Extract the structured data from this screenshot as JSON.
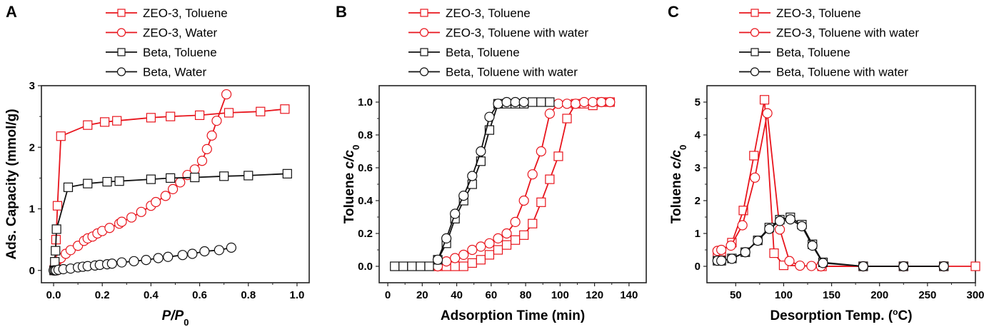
{
  "figure": {
    "colors": {
      "zeo3": "#e8141c",
      "beta": "#111111",
      "axis": "#222222"
    }
  },
  "chart_data": [
    {
      "panel": "A",
      "type": "line",
      "title": "",
      "xlabel": "P/P0",
      "xlabel_parts": {
        "main": "P/P",
        "sub": "0"
      },
      "ylabel": "Ads. Capacity (mmol/g)",
      "xlim": [
        -0.05,
        1.05
      ],
      "ylim": [
        -0.2,
        3.0
      ],
      "xticks": [
        0.0,
        0.2,
        0.4,
        0.6,
        0.8,
        1.0
      ],
      "xtick_labels": [
        "0.0",
        "0.2",
        "0.4",
        "0.6",
        "0.8",
        "1.0"
      ],
      "yticks": [
        0,
        1,
        2,
        3
      ],
      "ytick_labels": [
        "0",
        "1",
        "2",
        "3"
      ],
      "grid": false,
      "legend_position": "top",
      "series": [
        {
          "name": "ZEO-3, Toluene",
          "color": "zeo3",
          "marker": "square",
          "x": [
            0.003,
            0.006,
            0.01,
            0.016,
            0.03,
            0.14,
            0.21,
            0.26,
            0.4,
            0.48,
            0.6,
            0.72,
            0.85,
            0.95
          ],
          "y": [
            0.0,
            0.12,
            0.5,
            1.05,
            2.18,
            2.36,
            2.41,
            2.43,
            2.48,
            2.5,
            2.52,
            2.56,
            2.58,
            2.62
          ]
        },
        {
          "name": "ZEO-3, Water",
          "color": "zeo3",
          "marker": "circle",
          "x": [
            0.003,
            0.01,
            0.02,
            0.03,
            0.05,
            0.07,
            0.1,
            0.125,
            0.14,
            0.16,
            0.18,
            0.2,
            0.23,
            0.27,
            0.28,
            0.32,
            0.36,
            0.4,
            0.42,
            0.46,
            0.49,
            0.52,
            0.55,
            0.58,
            0.61,
            0.63,
            0.65,
            0.67,
            0.71
          ],
          "y": [
            0.05,
            0.13,
            0.18,
            0.2,
            0.27,
            0.33,
            0.4,
            0.48,
            0.52,
            0.55,
            0.6,
            0.64,
            0.69,
            0.76,
            0.79,
            0.86,
            0.95,
            1.05,
            1.11,
            1.21,
            1.32,
            1.43,
            1.55,
            1.64,
            1.78,
            1.97,
            2.19,
            2.43,
            2.86
          ]
        },
        {
          "name": "Beta, Toluene",
          "color": "beta",
          "marker": "square",
          "x": [
            0.002,
            0.005,
            0.008,
            0.012,
            0.06,
            0.14,
            0.22,
            0.27,
            0.4,
            0.48,
            0.58,
            0.7,
            0.8,
            0.96
          ],
          "y": [
            0.0,
            0.14,
            0.32,
            0.67,
            1.35,
            1.41,
            1.44,
            1.45,
            1.48,
            1.5,
            1.51,
            1.53,
            1.54,
            1.57
          ]
        },
        {
          "name": "Beta, Water",
          "color": "beta",
          "marker": "circle",
          "x": [
            0.0,
            0.005,
            0.01,
            0.02,
            0.04,
            0.07,
            0.1,
            0.12,
            0.14,
            0.17,
            0.19,
            0.22,
            0.24,
            0.28,
            0.33,
            0.38,
            0.43,
            0.47,
            0.53,
            0.57,
            0.62,
            0.68,
            0.73
          ],
          "y": [
            0.0,
            0.0,
            0.0,
            0.01,
            0.02,
            0.03,
            0.05,
            0.06,
            0.07,
            0.08,
            0.09,
            0.1,
            0.11,
            0.13,
            0.15,
            0.17,
            0.2,
            0.22,
            0.25,
            0.27,
            0.31,
            0.33,
            0.37
          ]
        }
      ]
    },
    {
      "panel": "B",
      "type": "line",
      "title": "",
      "xlabel": "Adsorption Time (min)",
      "ylabel": "Toluene c/c0",
      "ylabel_parts": {
        "main": "Toluene ",
        "ital": "c/c",
        "sub": "0"
      },
      "xlim": [
        -5,
        150
      ],
      "ylim": [
        -0.1,
        1.1
      ],
      "xticks": [
        0,
        20,
        40,
        60,
        80,
        100,
        120,
        140
      ],
      "xtick_labels": [
        "0",
        "20",
        "40",
        "60",
        "80",
        "100",
        "120",
        "140"
      ],
      "yticks": [
        0.0,
        0.2,
        0.4,
        0.6,
        0.8,
        1.0
      ],
      "ytick_labels": [
        "0.0",
        "0.2",
        "0.4",
        "0.6",
        "0.8",
        "1.0"
      ],
      "grid": false,
      "legend_position": "top",
      "series": [
        {
          "name": "ZEO-3, Toluene",
          "color": "zeo3",
          "marker": "square",
          "x": [
            29,
            34,
            39,
            44,
            49,
            54,
            59,
            64,
            69,
            74,
            79,
            84,
            89,
            94,
            99,
            104,
            109,
            114,
            119,
            124,
            129
          ],
          "y": [
            0.0,
            0.0,
            0.0,
            0.0,
            0.02,
            0.04,
            0.07,
            0.1,
            0.13,
            0.16,
            0.19,
            0.26,
            0.39,
            0.53,
            0.67,
            0.9,
            0.99,
            0.99,
            0.98,
            1.0,
            1.0
          ]
        },
        {
          "name": "ZEO-3, Toluene with water",
          "color": "zeo3",
          "marker": "circle",
          "x": [
            29,
            34,
            39,
            44,
            49,
            54,
            59,
            64,
            69,
            74,
            79,
            84,
            89,
            94,
            99,
            104,
            109,
            114,
            119,
            124,
            129
          ],
          "y": [
            0.0,
            0.03,
            0.05,
            0.07,
            0.1,
            0.12,
            0.14,
            0.17,
            0.2,
            0.27,
            0.4,
            0.56,
            0.7,
            0.93,
            0.99,
            0.99,
            0.99,
            1.0,
            1.0,
            1.0,
            1.0
          ]
        },
        {
          "name": "Beta, Toluene",
          "color": "beta",
          "marker": "square",
          "x": [
            4,
            9,
            14,
            19,
            24,
            29,
            34,
            39,
            44,
            49,
            54,
            59,
            64,
            69,
            74,
            79,
            84,
            89,
            94
          ],
          "y": [
            0.0,
            0.0,
            0.0,
            0.0,
            0.0,
            0.04,
            0.14,
            0.29,
            0.4,
            0.5,
            0.64,
            0.83,
            0.99,
            0.99,
            0.99,
            0.99,
            1.0,
            1.0,
            1.0
          ]
        },
        {
          "name": "Beta, Toluene with water",
          "color": "beta",
          "marker": "circle",
          "x": [
            29,
            34,
            39,
            44,
            49,
            54,
            59,
            64,
            69,
            74,
            79
          ],
          "y": [
            0.04,
            0.17,
            0.32,
            0.43,
            0.55,
            0.7,
            0.91,
            0.99,
            1.0,
            1.0,
            1.0
          ]
        }
      ]
    },
    {
      "panel": "C",
      "type": "line",
      "title": "",
      "xlabel": "Desorption Temp. (°C)",
      "xlabel_parts": {
        "main": "Desorption Temp. (",
        "sup": "o",
        "rest": "C)"
      },
      "ylabel": "Toluene c/c0",
      "ylabel_parts": {
        "main": "Toluene ",
        "ital": "c/c",
        "sub": "0"
      },
      "xlim": [
        20,
        300
      ],
      "ylim": [
        -0.5,
        5.5
      ],
      "xticks": [
        50,
        100,
        150,
        200,
        250,
        300
      ],
      "xtick_labels": [
        "50",
        "100",
        "150",
        "200",
        "250",
        "300"
      ],
      "yticks": [
        0,
        1,
        2,
        3,
        4,
        5
      ],
      "ytick_labels": [
        "0",
        "1",
        "2",
        "3",
        "4",
        "5"
      ],
      "grid": false,
      "legend_position": "top",
      "series": [
        {
          "name": "ZEO-3, Toluene",
          "color": "zeo3",
          "marker": "square",
          "x": [
            31,
            35,
            46,
            58,
            69,
            80,
            90,
            100,
            140,
            183,
            225,
            267,
            300
          ],
          "y": [
            0.4,
            0.45,
            0.72,
            1.7,
            3.37,
            5.07,
            0.4,
            0.03,
            0.0,
            0.0,
            0.0,
            0.0,
            0.0
          ]
        },
        {
          "name": "ZEO-3, Toluene with water",
          "color": "zeo3",
          "marker": "circle",
          "x": [
            31,
            35,
            45,
            57,
            70,
            83,
            96,
            106,
            117,
            129,
            139,
            183,
            225,
            267
          ],
          "y": [
            0.47,
            0.5,
            0.63,
            1.25,
            2.7,
            4.66,
            1.12,
            0.16,
            0.02,
            0.01,
            0.0,
            0.0,
            0.0,
            0.0
          ]
        },
        {
          "name": "Beta, Toluene",
          "color": "beta",
          "marker": "square",
          "x": [
            31,
            35,
            46,
            60,
            73,
            85,
            96,
            107,
            119,
            130,
            141,
            183,
            225,
            267
          ],
          "y": [
            0.17,
            0.17,
            0.24,
            0.43,
            0.79,
            1.18,
            1.42,
            1.49,
            1.27,
            0.67,
            0.12,
            0.0,
            0.0,
            0.0
          ]
        },
        {
          "name": "Beta, Toluene with water",
          "color": "beta",
          "marker": "circle",
          "x": [
            31,
            35,
            46,
            60,
            73,
            85,
            96,
            107,
            119,
            130,
            141,
            183,
            225,
            267
          ],
          "y": [
            0.17,
            0.17,
            0.23,
            0.43,
            0.78,
            1.14,
            1.38,
            1.43,
            1.22,
            0.63,
            0.1,
            0.0,
            0.0,
            0.0
          ]
        }
      ]
    }
  ]
}
